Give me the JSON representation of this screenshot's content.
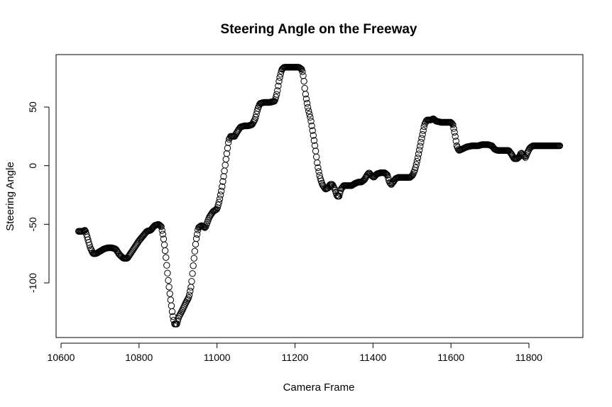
{
  "chart_data": {
    "type": "scatter",
    "title": "Steering Angle on the Freeway",
    "xlabel": "Camera Frame",
    "ylabel": "Steering Angle",
    "xlim": [
      10640,
      11900
    ],
    "ylim": [
      -137,
      87
    ],
    "xticks": [
      10600,
      10800,
      11000,
      11200,
      11400,
      11600,
      11800
    ],
    "yticks": [
      -100,
      -50,
      0,
      50
    ],
    "marker": "open-circle",
    "grid": false,
    "legend": "none",
    "series": [
      {
        "step": 2,
        "points": [
          [
            10645,
            -56
          ],
          [
            10655,
            -56
          ],
          [
            10662,
            -55
          ],
          [
            10668,
            -62
          ],
          [
            10675,
            -70
          ],
          [
            10682,
            -75
          ],
          [
            10690,
            -75
          ],
          [
            10700,
            -73
          ],
          [
            10710,
            -71
          ],
          [
            10720,
            -70
          ],
          [
            10730,
            -70
          ],
          [
            10740,
            -71
          ],
          [
            10750,
            -76
          ],
          [
            10760,
            -79
          ],
          [
            10770,
            -79
          ],
          [
            10780,
            -74
          ],
          [
            10790,
            -69
          ],
          [
            10800,
            -64
          ],
          [
            10810,
            -60
          ],
          [
            10820,
            -56
          ],
          [
            10830,
            -55
          ],
          [
            10840,
            -51
          ],
          [
            10850,
            -50
          ],
          [
            10857,
            -52
          ],
          [
            10862,
            -60
          ],
          [
            10868,
            -75
          ],
          [
            10874,
            -95
          ],
          [
            10880,
            -112
          ],
          [
            10886,
            -127
          ],
          [
            10891,
            -135
          ],
          [
            10897,
            -135
          ],
          [
            10902,
            -129
          ],
          [
            10910,
            -124
          ],
          [
            10920,
            -117
          ],
          [
            10928,
            -112
          ],
          [
            10934,
            -102
          ],
          [
            10940,
            -82
          ],
          [
            10946,
            -64
          ],
          [
            10952,
            -53
          ],
          [
            10960,
            -51
          ],
          [
            10970,
            -53
          ],
          [
            10980,
            -44
          ],
          [
            10990,
            -39
          ],
          [
            11000,
            -37
          ],
          [
            11006,
            -30
          ],
          [
            11012,
            -20
          ],
          [
            11018,
            -7
          ],
          [
            11024,
            8
          ],
          [
            11030,
            22
          ],
          [
            11035,
            25
          ],
          [
            11045,
            25
          ],
          [
            11052,
            29
          ],
          [
            11060,
            33
          ],
          [
            11070,
            34
          ],
          [
            11080,
            34
          ],
          [
            11090,
            35
          ],
          [
            11098,
            40
          ],
          [
            11104,
            48
          ],
          [
            11110,
            53
          ],
          [
            11120,
            54
          ],
          [
            11135,
            54
          ],
          [
            11148,
            55
          ],
          [
            11154,
            62
          ],
          [
            11160,
            74
          ],
          [
            11166,
            82
          ],
          [
            11172,
            84
          ],
          [
            11185,
            84
          ],
          [
            11200,
            84
          ],
          [
            11210,
            84
          ],
          [
            11218,
            82
          ],
          [
            11222,
            75
          ],
          [
            11226,
            63
          ],
          [
            11230,
            55
          ],
          [
            11234,
            48
          ],
          [
            11240,
            40
          ],
          [
            11246,
            28
          ],
          [
            11252,
            15
          ],
          [
            11258,
            0
          ],
          [
            11264,
            -10
          ],
          [
            11270,
            -16
          ],
          [
            11278,
            -20
          ],
          [
            11285,
            -19
          ],
          [
            11290,
            -16
          ],
          [
            11296,
            -16
          ],
          [
            11302,
            -20
          ],
          [
            11308,
            -26
          ],
          [
            11313,
            -26
          ],
          [
            11318,
            -20
          ],
          [
            11325,
            -17
          ],
          [
            11335,
            -17
          ],
          [
            11345,
            -17
          ],
          [
            11355,
            -15
          ],
          [
            11362,
            -14
          ],
          [
            11370,
            -14
          ],
          [
            11378,
            -12
          ],
          [
            11385,
            -8
          ],
          [
            11390,
            -6
          ],
          [
            11395,
            -8
          ],
          [
            11402,
            -10
          ],
          [
            11410,
            -7
          ],
          [
            11420,
            -6
          ],
          [
            11430,
            -6
          ],
          [
            11437,
            -8
          ],
          [
            11442,
            -14
          ],
          [
            11447,
            -16
          ],
          [
            11452,
            -14
          ],
          [
            11458,
            -11
          ],
          [
            11465,
            -10
          ],
          [
            11480,
            -10
          ],
          [
            11495,
            -10
          ],
          [
            11502,
            -8
          ],
          [
            11508,
            -3
          ],
          [
            11514,
            5
          ],
          [
            11520,
            15
          ],
          [
            11526,
            25
          ],
          [
            11532,
            35
          ],
          [
            11538,
            39
          ],
          [
            11548,
            39
          ],
          [
            11555,
            40
          ],
          [
            11562,
            38
          ],
          [
            11575,
            37
          ],
          [
            11590,
            37
          ],
          [
            11600,
            37
          ],
          [
            11605,
            35
          ],
          [
            11610,
            27
          ],
          [
            11615,
            17
          ],
          [
            11620,
            13
          ],
          [
            11628,
            14
          ],
          [
            11640,
            16
          ],
          [
            11655,
            17
          ],
          [
            11670,
            17
          ],
          [
            11680,
            18
          ],
          [
            11695,
            18
          ],
          [
            11705,
            17
          ],
          [
            11712,
            14
          ],
          [
            11720,
            13
          ],
          [
            11735,
            13
          ],
          [
            11748,
            13
          ],
          [
            11755,
            10
          ],
          [
            11762,
            6
          ],
          [
            11770,
            6
          ],
          [
            11776,
            8
          ],
          [
            11780,
            11
          ],
          [
            11786,
            9
          ],
          [
            11791,
            7
          ],
          [
            11796,
            11
          ],
          [
            11802,
            15
          ],
          [
            11810,
            17
          ],
          [
            11825,
            17
          ],
          [
            11840,
            17
          ],
          [
            11855,
            17
          ],
          [
            11872,
            17
          ],
          [
            11880,
            17
          ]
        ]
      }
    ]
  }
}
